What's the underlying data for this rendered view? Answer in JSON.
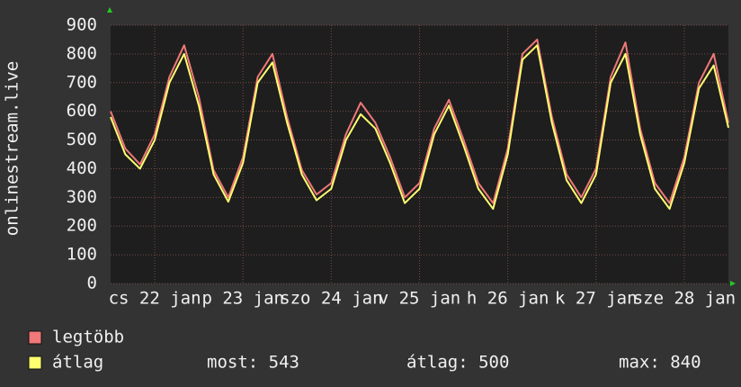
{
  "chart_data": {
    "type": "line",
    "y_label": "onlinestream.live",
    "x": [
      0,
      4,
      8,
      12,
      16,
      20,
      24,
      28,
      32,
      36,
      40,
      44,
      48,
      52,
      56,
      60,
      64,
      68,
      72,
      76,
      80,
      84,
      88,
      92,
      96,
      100,
      104,
      108,
      112,
      116,
      120,
      124,
      128,
      132,
      136,
      140,
      144,
      148,
      152,
      156,
      160,
      164,
      168
    ],
    "xlim": [
      0,
      168
    ],
    "xticks": [
      {
        "value": 12,
        "label": "cs 22 jan"
      },
      {
        "value": 36,
        "label": "p 23 jan"
      },
      {
        "value": 60,
        "label": "szo 24 jan"
      },
      {
        "value": 84,
        "label": "v 25 jan"
      },
      {
        "value": 108,
        "label": "h 26 jan"
      },
      {
        "value": 132,
        "label": "k 27 jan"
      },
      {
        "value": 156,
        "label": "sze 28 jan"
      }
    ],
    "ylim": [
      0,
      900
    ],
    "yticks": [
      0,
      100,
      200,
      300,
      400,
      500,
      600,
      700,
      800,
      900
    ],
    "grid": true,
    "series": [
      {
        "name": "legtöbb",
        "color": "#f07878",
        "values": [
          600,
          470,
          415,
          520,
          720,
          830,
          650,
          395,
          300,
          440,
          720,
          800,
          580,
          395,
          310,
          350,
          520,
          630,
          560,
          440,
          300,
          350,
          540,
          640,
          500,
          350,
          280,
          470,
          800,
          850,
          580,
          380,
          300,
          400,
          720,
          840,
          540,
          350,
          280,
          440,
          700,
          800,
          560
        ]
      },
      {
        "name": "átlag",
        "color": "#ffff70",
        "values": [
          580,
          450,
          400,
          500,
          700,
          800,
          620,
          380,
          285,
          420,
          700,
          770,
          560,
          380,
          290,
          330,
          500,
          590,
          540,
          420,
          280,
          330,
          520,
          620,
          480,
          330,
          260,
          450,
          780,
          830,
          560,
          360,
          280,
          380,
          700,
          800,
          520,
          330,
          260,
          420,
          680,
          760,
          543
        ]
      }
    ],
    "stats": [
      "most: 543",
      "átlag: 500",
      "max: 840"
    ]
  }
}
